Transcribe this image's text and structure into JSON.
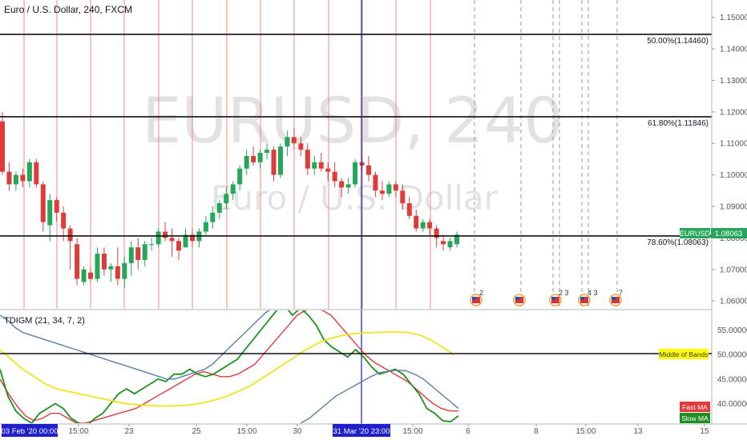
{
  "header": {
    "title": "Euro / U.S. Dollar, 240, FXCM"
  },
  "watermark": {
    "symbol": "EURUSD, 240",
    "name": "Euro / U.S. Dollar"
  },
  "price_axis": {
    "ticks": [
      "1.15000",
      "1.14000",
      "1.13000",
      "1.12000",
      "1.11000",
      "1.10000",
      "1.09000",
      "1.08000",
      "1.07000",
      "1.06000"
    ]
  },
  "fib_levels": [
    {
      "label": "50.00%(1.14460)",
      "price": 1.1446
    },
    {
      "label": "61.80%(1.11846)",
      "price": 1.11846
    },
    {
      "label": "78.60%(1.08063)",
      "price": 1.08063
    }
  ],
  "price_badge": {
    "label": "EURUSD",
    "value": "1.08063",
    "color": "#26a65b"
  },
  "indicator": {
    "title": "TDIGM (21, 34, 7, 2)",
    "ticks": [
      "55.00000",
      "50.00000",
      "45.00000",
      "40.00000"
    ],
    "middle_label": "Middle of Bands",
    "fast_label": "Fast MA",
    "slow_label": "Slow MA"
  },
  "time_axis": {
    "ticks": [
      "15:00",
      "23",
      "25",
      "15:00",
      "30",
      "15:00",
      "6",
      "8",
      "15:00",
      "13",
      "15"
    ]
  },
  "crosshair": {
    "left_date": "03 Feb '20   00:00",
    "right_date": "31 Mar '20   23:00"
  },
  "event_markers": [
    "2",
    "2 3",
    "4 3",
    "7"
  ],
  "colors": {
    "up": "#26a65b",
    "down": "#e03b3b",
    "blue_line": "#1f1fa8",
    "yellow": "#f4e21e",
    "band": "#5a7fa6"
  },
  "chart_data": {
    "type": "candlestick",
    "title": "Euro / U.S. Dollar, 240, FXCM",
    "ylim": [
      1.0575,
      1.1555
    ],
    "candles": [
      {
        "o": 1.117,
        "h": 1.12,
        "l": 1.1,
        "c": 1.101
      },
      {
        "o": 1.101,
        "h": 1.104,
        "l": 1.095,
        "c": 1.097
      },
      {
        "o": 1.097,
        "h": 1.101,
        "l": 1.095,
        "c": 1.1
      },
      {
        "o": 1.1,
        "h": 1.102,
        "l": 1.096,
        "c": 1.098
      },
      {
        "o": 1.098,
        "h": 1.105,
        "l": 1.096,
        "c": 1.104
      },
      {
        "o": 1.104,
        "h": 1.105,
        "l": 1.096,
        "c": 1.097
      },
      {
        "o": 1.097,
        "h": 1.098,
        "l": 1.082,
        "c": 1.085
      },
      {
        "o": 1.084,
        "h": 1.094,
        "l": 1.079,
        "c": 1.092
      },
      {
        "o": 1.092,
        "h": 1.093,
        "l": 1.085,
        "c": 1.088
      },
      {
        "o": 1.088,
        "h": 1.09,
        "l": 1.079,
        "c": 1.083
      },
      {
        "o": 1.083,
        "h": 1.084,
        "l": 1.07,
        "c": 1.079
      },
      {
        "o": 1.078,
        "h": 1.08,
        "l": 1.065,
        "c": 1.067
      },
      {
        "o": 1.066,
        "h": 1.071,
        "l": 1.065,
        "c": 1.07
      },
      {
        "o": 1.069,
        "h": 1.071,
        "l": 1.066,
        "c": 1.067
      },
      {
        "o": 1.067,
        "h": 1.077,
        "l": 1.066,
        "c": 1.075
      },
      {
        "o": 1.075,
        "h": 1.077,
        "l": 1.068,
        "c": 1.07
      },
      {
        "o": 1.07,
        "h": 1.072,
        "l": 1.066,
        "c": 1.071
      },
      {
        "o": 1.071,
        "h": 1.077,
        "l": 1.065,
        "c": 1.067
      },
      {
        "o": 1.067,
        "h": 1.074,
        "l": 1.064,
        "c": 1.072
      },
      {
        "o": 1.072,
        "h": 1.079,
        "l": 1.068,
        "c": 1.077
      },
      {
        "o": 1.077,
        "h": 1.08,
        "l": 1.07,
        "c": 1.073
      },
      {
        "o": 1.073,
        "h": 1.079,
        "l": 1.071,
        "c": 1.078
      },
      {
        "o": 1.078,
        "h": 1.08,
        "l": 1.076,
        "c": 1.078
      },
      {
        "o": 1.078,
        "h": 1.083,
        "l": 1.077,
        "c": 1.082
      },
      {
        "o": 1.082,
        "h": 1.085,
        "l": 1.079,
        "c": 1.08
      },
      {
        "o": 1.08,
        "h": 1.083,
        "l": 1.074,
        "c": 1.079
      },
      {
        "o": 1.079,
        "h": 1.08,
        "l": 1.073,
        "c": 1.076
      },
      {
        "o": 1.077,
        "h": 1.083,
        "l": 1.077,
        "c": 1.081
      },
      {
        "o": 1.081,
        "h": 1.083,
        "l": 1.077,
        "c": 1.079
      },
      {
        "o": 1.079,
        "h": 1.083,
        "l": 1.077,
        "c": 1.082
      },
      {
        "o": 1.082,
        "h": 1.087,
        "l": 1.081,
        "c": 1.085
      },
      {
        "o": 1.085,
        "h": 1.09,
        "l": 1.083,
        "c": 1.088
      },
      {
        "o": 1.088,
        "h": 1.092,
        "l": 1.086,
        "c": 1.091
      },
      {
        "o": 1.091,
        "h": 1.096,
        "l": 1.089,
        "c": 1.094
      },
      {
        "o": 1.094,
        "h": 1.098,
        "l": 1.092,
        "c": 1.097
      },
      {
        "o": 1.097,
        "h": 1.103,
        "l": 1.095,
        "c": 1.102
      },
      {
        "o": 1.102,
        "h": 1.108,
        "l": 1.1,
        "c": 1.106
      },
      {
        "o": 1.106,
        "h": 1.109,
        "l": 1.103,
        "c": 1.104
      },
      {
        "o": 1.104,
        "h": 1.108,
        "l": 1.102,
        "c": 1.107
      },
      {
        "o": 1.107,
        "h": 1.11,
        "l": 1.105,
        "c": 1.108
      },
      {
        "o": 1.108,
        "h": 1.109,
        "l": 1.098,
        "c": 1.1
      },
      {
        "o": 1.1,
        "h": 1.11,
        "l": 1.099,
        "c": 1.109
      },
      {
        "o": 1.109,
        "h": 1.114,
        "l": 1.106,
        "c": 1.112
      },
      {
        "o": 1.112,
        "h": 1.115,
        "l": 1.108,
        "c": 1.11
      },
      {
        "o": 1.11,
        "h": 1.112,
        "l": 1.106,
        "c": 1.108
      },
      {
        "o": 1.108,
        "h": 1.11,
        "l": 1.1,
        "c": 1.102
      },
      {
        "o": 1.102,
        "h": 1.106,
        "l": 1.1,
        "c": 1.104
      },
      {
        "o": 1.104,
        "h": 1.107,
        "l": 1.101,
        "c": 1.102
      },
      {
        "o": 1.102,
        "h": 1.104,
        "l": 1.098,
        "c": 1.101
      },
      {
        "o": 1.101,
        "h": 1.104,
        "l": 1.096,
        "c": 1.098
      },
      {
        "o": 1.098,
        "h": 1.099,
        "l": 1.093,
        "c": 1.096
      },
      {
        "o": 1.096,
        "h": 1.099,
        "l": 1.094,
        "c": 1.097
      },
      {
        "o": 1.097,
        "h": 1.105,
        "l": 1.096,
        "c": 1.104
      },
      {
        "o": 1.104,
        "h": 1.106,
        "l": 1.101,
        "c": 1.103
      },
      {
        "o": 1.103,
        "h": 1.106,
        "l": 1.098,
        "c": 1.1
      },
      {
        "o": 1.1,
        "h": 1.101,
        "l": 1.093,
        "c": 1.095
      },
      {
        "o": 1.095,
        "h": 1.098,
        "l": 1.092,
        "c": 1.094
      },
      {
        "o": 1.094,
        "h": 1.098,
        "l": 1.093,
        "c": 1.097
      },
      {
        "o": 1.097,
        "h": 1.098,
        "l": 1.093,
        "c": 1.095
      },
      {
        "o": 1.095,
        "h": 1.097,
        "l": 1.089,
        "c": 1.091
      },
      {
        "o": 1.091,
        "h": 1.093,
        "l": 1.086,
        "c": 1.087
      },
      {
        "o": 1.087,
        "h": 1.089,
        "l": 1.082,
        "c": 1.083
      },
      {
        "o": 1.083,
        "h": 1.086,
        "l": 1.082,
        "c": 1.085
      },
      {
        "o": 1.085,
        "h": 1.086,
        "l": 1.081,
        "c": 1.083
      },
      {
        "o": 1.083,
        "h": 1.084,
        "l": 1.077,
        "c": 1.08
      },
      {
        "o": 1.079,
        "h": 1.081,
        "l": 1.076,
        "c": 1.078
      },
      {
        "o": 1.077,
        "h": 1.08,
        "l": 1.076,
        "c": 1.079
      },
      {
        "o": 1.078,
        "h": 1.082,
        "l": 1.077,
        "c": 1.081
      }
    ],
    "indicator_ylim": [
      36.0,
      59.0
    ],
    "indicator_series": [
      {
        "name": "Fast MA",
        "color": "#e03b3b",
        "values": [
          45,
          42,
          39.5,
          37.5,
          36.5,
          37,
          38,
          38,
          37,
          36,
          36,
          36.5,
          37,
          37.5,
          38,
          38.5,
          39,
          40,
          41,
          42,
          43,
          44,
          45,
          46,
          46.5,
          46,
          45.5,
          45.5,
          46,
          47,
          48,
          50,
          52,
          54,
          56,
          58,
          59,
          59.5,
          59,
          58,
          56,
          54,
          52,
          50,
          48.5,
          47.5,
          46.5,
          45.5,
          44.5,
          43,
          41.5,
          40,
          39,
          38.5,
          38.5
        ]
      },
      {
        "name": "Slow MA",
        "color": "#1f8f1f",
        "values": [
          47,
          41.5,
          38.5,
          37,
          36,
          38,
          39,
          40,
          39,
          37,
          36,
          35.5,
          37,
          38,
          40,
          42,
          43,
          42,
          43,
          44,
          45,
          44.5,
          46,
          46,
          47,
          46,
          45.5,
          46,
          47,
          48,
          49,
          51,
          53,
          55,
          57,
          59,
          60,
          58,
          59.5,
          58,
          56,
          53,
          51.5,
          50.5,
          49.5,
          51,
          49.5,
          47.5,
          46,
          46.5,
          47,
          46,
          44,
          42,
          39,
          38,
          36.5,
          36.3,
          37.5
        ]
      },
      {
        "name": "Upper band",
        "color": "#5a7fa6",
        "values": [
          58,
          57,
          55.5,
          54.5,
          54,
          53.5,
          53,
          52.5,
          52,
          51.5,
          51,
          50.5,
          50,
          49.5,
          49,
          48.5,
          48,
          47.5,
          47,
          46.5,
          46,
          45.5,
          45,
          45,
          45.5,
          46,
          46.5,
          47,
          48,
          49.5,
          51,
          52.5,
          54,
          55.5,
          57,
          58.5,
          59.5,
          60
        ]
      },
      {
        "name": "Lower band",
        "color": "#5a7fa6",
        "values": [
          36,
          37,
          38.5,
          40,
          41.5,
          42.5,
          43.5,
          44.5,
          45.5,
          46.3,
          46.6,
          46.8,
          46.7,
          46,
          45,
          43.5,
          42,
          40.5,
          39
        ]
      },
      {
        "name": "Middle of Bands",
        "color": "#f4e21e",
        "values": [
          51,
          49,
          47,
          45.5,
          44,
          43,
          42.5,
          42,
          41.5,
          41,
          40.5,
          40,
          39.8,
          39.6,
          39.5,
          39.5,
          39.6,
          39.8,
          40.2,
          40.8,
          41.5,
          42.5,
          43.5,
          45,
          46.5,
          48,
          49.5,
          51,
          52.3,
          53.2,
          53.8,
          54.2,
          54.4,
          54.5,
          54.6,
          54.6,
          54.5,
          54,
          53,
          51.5,
          50
        ]
      }
    ]
  }
}
